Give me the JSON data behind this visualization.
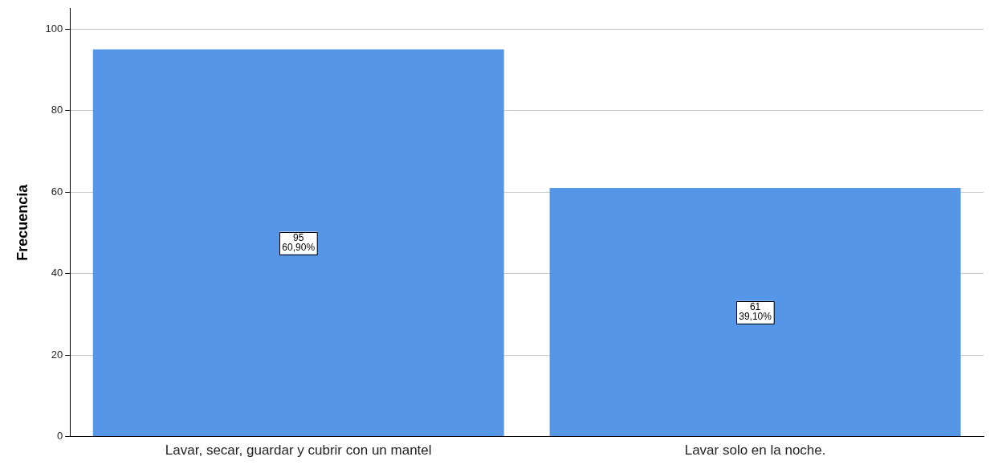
{
  "chart_data": {
    "type": "bar",
    "ylabel": "Frecuencia",
    "categories": [
      "Lavar, secar, guardar y cubrir con un mantel",
      "Lavar solo en la noche."
    ],
    "values": [
      95,
      61
    ],
    "color": "#5596e6",
    "value_labels": [
      "95\n60,90%",
      "61\n39,10%"
    ],
    "ylim": [
      0,
      105
    ],
    "yticks": [
      0,
      20,
      40,
      60,
      80,
      100
    ],
    "grid": "y",
    "legend": false
  }
}
